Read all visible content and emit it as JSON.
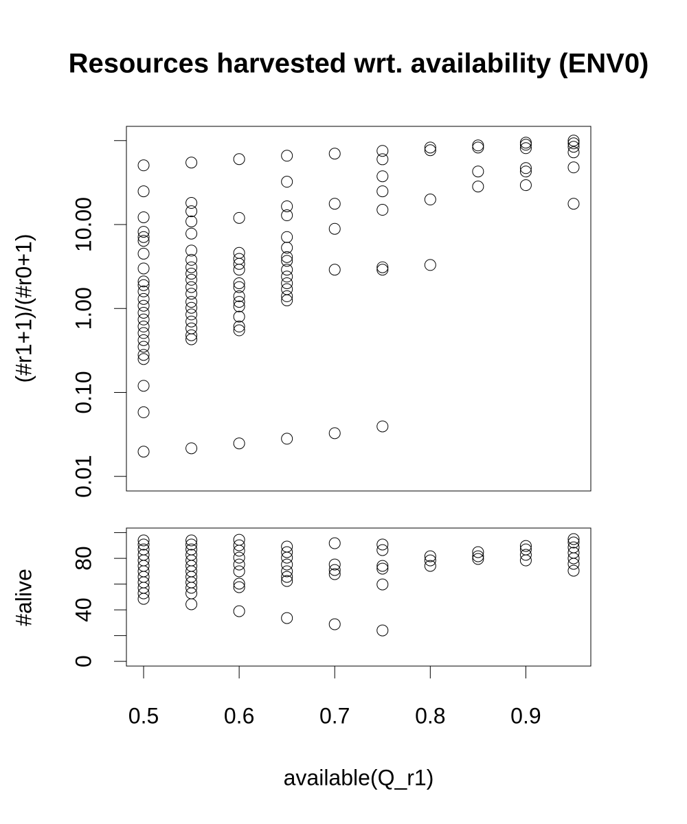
{
  "chart_data": [
    {
      "type": "scatter",
      "title": "Resources harvested wrt. availability (ENV0)",
      "y_label": "(#r1+1)/(#r0+1)",
      "color": "#000000",
      "ylog": true,
      "xlim": [
        0.482,
        0.968
      ],
      "ylim": [
        0.0067,
        148
      ],
      "yticks": [
        {
          "value": 0.01,
          "label": "0.01"
        },
        {
          "value": 0.1,
          "label": "0.10"
        },
        {
          "value": 1,
          "label": "1.00"
        },
        {
          "value": 10,
          "label": "10.00"
        },
        {
          "value": 100,
          "label": null
        }
      ],
      "x": [
        0.5,
        0.5,
        0.5,
        0.5,
        0.5,
        0.5,
        0.5,
        0.5,
        0.5,
        0.5,
        0.5,
        0.5,
        0.5,
        0.5,
        0.5,
        0.5,
        0.5,
        0.5,
        0.5,
        0.5,
        0.5,
        0.5,
        0.5,
        0.5,
        0.55,
        0.55,
        0.55,
        0.55,
        0.55,
        0.55,
        0.55,
        0.55,
        0.55,
        0.55,
        0.55,
        0.55,
        0.55,
        0.55,
        0.55,
        0.55,
        0.55,
        0.55,
        0.55,
        0.55,
        0.6,
        0.6,
        0.6,
        0.6,
        0.6,
        0.6,
        0.6,
        0.6,
        0.6,
        0.6,
        0.6,
        0.6,
        0.6,
        0.6,
        0.6,
        0.65,
        0.65,
        0.65,
        0.65,
        0.65,
        0.65,
        0.65,
        0.65,
        0.65,
        0.65,
        0.65,
        0.65,
        0.65,
        0.65,
        0.65,
        0.7,
        0.7,
        0.7,
        0.7,
        0.7,
        0.75,
        0.75,
        0.75,
        0.75,
        0.75,
        0.75,
        0.75,
        0.75,
        0.8,
        0.8,
        0.8,
        0.8,
        0.85,
        0.85,
        0.85,
        0.85,
        0.9,
        0.9,
        0.9,
        0.9,
        0.9,
        0.9,
        0.95,
        0.95,
        0.95,
        0.95,
        0.95,
        0.95
      ],
      "values": [
        50.8,
        24.9,
        12.2,
        8.2,
        7.1,
        6.4,
        4.5,
        3.0,
        2.1,
        1.9,
        1.6,
        1.3,
        1.08,
        0.89,
        0.74,
        0.61,
        0.51,
        0.42,
        0.35,
        0.28,
        0.25,
        0.12,
        0.058,
        0.0197,
        54.8,
        18.1,
        14.4,
        10.9,
        7.8,
        4.9,
        3.8,
        3.1,
        2.6,
        2.2,
        1.8,
        1.5,
        1.2,
        1.02,
        0.85,
        0.7,
        0.58,
        0.48,
        0.43,
        0.0216,
        60.2,
        12.0,
        4.6,
        3.9,
        3.4,
        2.9,
        2.0,
        1.8,
        1.4,
        1.2,
        1.06,
        0.8,
        0.61,
        0.55,
        0.0247,
        66.1,
        32.4,
        16.5,
        12.9,
        7.1,
        5.3,
        4.1,
        3.7,
        2.9,
        2.4,
        2.0,
        1.7,
        1.4,
        1.25,
        0.0281,
        70,
        17.7,
        8.9,
        2.9,
        0.0327,
        75.5,
        60,
        37.6,
        24.9,
        15.0,
        3.1,
        2.9,
        0.0394,
        82.8,
        76.9,
        19.9,
        3.3,
        87.7,
        82.8,
        42.9,
        28.4,
        94.6,
        89.4,
        81.3,
        47.1,
        42.9,
        29.5,
        100,
        92.8,
        84.5,
        72.6,
        48.0,
        17.7
      ]
    },
    {
      "type": "scatter",
      "x_label": "available(Q_r1)",
      "y_label": "#alive",
      "color": "#000000",
      "ylog": false,
      "xlim": [
        0.482,
        0.968
      ],
      "ylim": [
        -3.7,
        103.5
      ],
      "xticks": [
        0.5,
        0.6,
        0.7,
        0.8,
        0.9
      ],
      "yticks": [
        0,
        {
          "value": 20,
          "label": null
        },
        40,
        {
          "value": 60,
          "label": null
        },
        80,
        {
          "value": 100,
          "label": null
        }
      ],
      "x": [
        0.5,
        0.5,
        0.5,
        0.5,
        0.5,
        0.5,
        0.5,
        0.5,
        0.5,
        0.5,
        0.5,
        0.5,
        0.55,
        0.55,
        0.55,
        0.55,
        0.55,
        0.55,
        0.55,
        0.55,
        0.55,
        0.55,
        0.55,
        0.55,
        0.6,
        0.6,
        0.6,
        0.6,
        0.6,
        0.6,
        0.6,
        0.6,
        0.6,
        0.65,
        0.65,
        0.65,
        0.65,
        0.65,
        0.65,
        0.65,
        0.65,
        0.7,
        0.7,
        0.7,
        0.7,
        0.7,
        0.75,
        0.75,
        0.75,
        0.75,
        0.75,
        0.75,
        0.8,
        0.8,
        0.8,
        0.85,
        0.85,
        0.85,
        0.9,
        0.9,
        0.9,
        0.9,
        0.95,
        0.95,
        0.95,
        0.95,
        0.95,
        0.95,
        0.95
      ],
      "values": [
        93.9,
        90.7,
        86.9,
        82.7,
        78.4,
        74.1,
        69.9,
        65.6,
        61.3,
        57.1,
        52.8,
        48.5,
        93.9,
        90.7,
        86.9,
        82.7,
        78.4,
        74.1,
        69.9,
        65.6,
        61.3,
        57.1,
        52.8,
        44.3,
        94.4,
        90.1,
        85.9,
        80.5,
        75.2,
        69.9,
        60.3,
        57.6,
        38.9,
        89.1,
        84.8,
        80.5,
        75.2,
        69.9,
        65.6,
        62.4,
        33.6,
        91.7,
        75.2,
        70.9,
        67.7,
        28.8,
        90.7,
        86.4,
        74.1,
        72,
        59.7,
        24,
        81.6,
        78.4,
        74.1,
        84.8,
        81.6,
        79.5,
        89.6,
        86.9,
        82.7,
        78.4,
        94.9,
        92.3,
        88.5,
        84.3,
        80,
        75.7,
        70.4
      ]
    }
  ]
}
